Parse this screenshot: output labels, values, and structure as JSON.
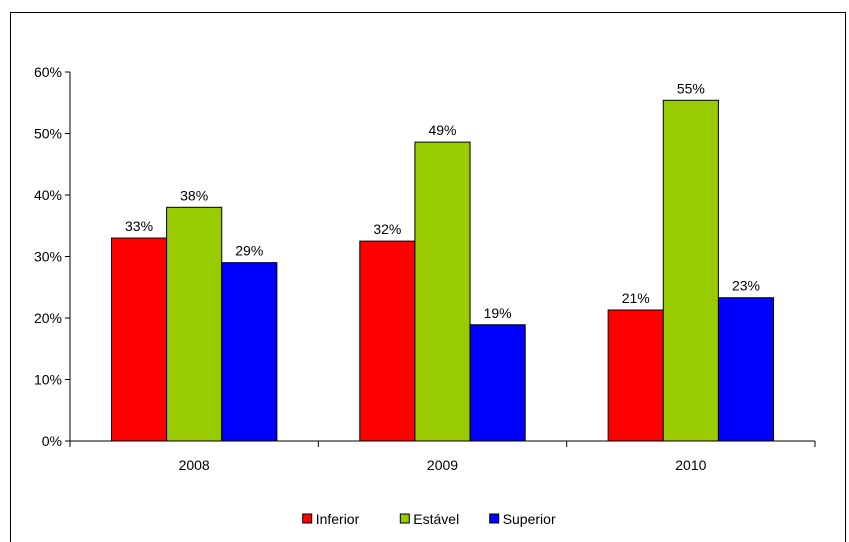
{
  "chart_data": {
    "type": "bar",
    "categories": [
      "2008",
      "2009",
      "2010"
    ],
    "series": [
      {
        "name": "Inferior",
        "color": "#ff0000",
        "values": [
          33,
          32.5,
          21.3
        ],
        "labels": [
          "33%",
          "32%",
          "21%"
        ]
      },
      {
        "name": "Estável",
        "color": "#99cc00",
        "values": [
          38,
          48.6,
          55.4
        ],
        "labels": [
          "38%",
          "49%",
          "55%"
        ]
      },
      {
        "name": "Superior",
        "color": "#0000ff",
        "values": [
          29,
          18.9,
          23.3
        ],
        "labels": [
          "29%",
          "19%",
          "23%"
        ]
      }
    ],
    "ylim": [
      0,
      60
    ],
    "yticks": [
      0,
      10,
      20,
      30,
      40,
      50,
      60
    ],
    "ytick_labels": [
      "0%",
      "10%",
      "20%",
      "30%",
      "40%",
      "50%",
      "60%"
    ],
    "grid": false,
    "legend_position": "bottom"
  }
}
